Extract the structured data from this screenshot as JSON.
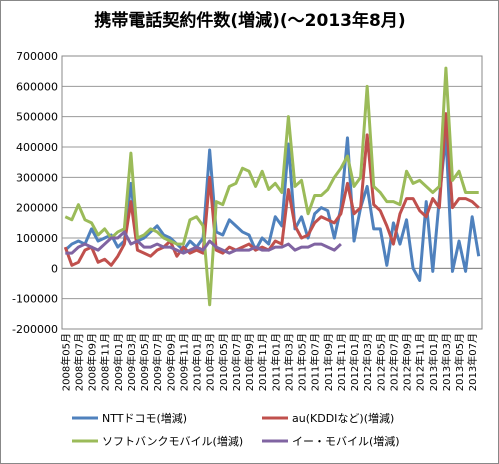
{
  "chart_data": {
    "type": "line",
    "title": "携帯電話契約件数(増減)(～2013年8月)",
    "categories": [
      "2008年05月",
      null,
      "2008年07月",
      null,
      "2008年09月",
      null,
      "2008年11月",
      null,
      "2009年01月",
      null,
      "2009年03月",
      null,
      "2009年05月",
      null,
      "2009年07月",
      null,
      "2009年09月",
      null,
      "2009年11月",
      null,
      "2010年01月",
      null,
      "2010年03月",
      null,
      "2010年05月",
      null,
      "2010年07月",
      null,
      "2010年09月",
      null,
      "2010年11月",
      null,
      "2011年01月",
      null,
      "2011年03月",
      null,
      "2011年05月",
      null,
      "2011年07月",
      null,
      "2011年09月",
      null,
      "2011年11月",
      null,
      "2012年01月",
      null,
      "2012年03月",
      null,
      "2012年05月",
      null,
      "2012年07月",
      null,
      "2012年09月",
      null,
      "2012年11月",
      null,
      "2013年01月",
      null,
      "2013年03月",
      null,
      "2013年05月",
      null,
      "2013年07月",
      null
    ],
    "series": [
      {
        "name": "NTTドコモ(増減)",
        "color": "#4f81bd",
        "values": [
          60000,
          80000,
          90000,
          80000,
          130000,
          90000,
          100000,
          110000,
          70000,
          90000,
          280000,
          90000,
          100000,
          120000,
          140000,
          110000,
          100000,
          80000,
          60000,
          90000,
          70000,
          100000,
          390000,
          120000,
          110000,
          160000,
          140000,
          120000,
          110000,
          60000,
          100000,
          80000,
          170000,
          140000,
          410000,
          130000,
          170000,
          100000,
          180000,
          200000,
          190000,
          100000,
          200000,
          430000,
          90000,
          200000,
          270000,
          130000,
          130000,
          10000,
          150000,
          80000,
          160000,
          0,
          -40000,
          220000,
          -10000,
          230000,
          440000,
          -10000,
          90000,
          -10000,
          170000,
          40000
        ]
      },
      {
        "name": "au(KDDIなど)(増減)",
        "color": "#c0504d",
        "values": [
          70000,
          10000,
          20000,
          60000,
          70000,
          20000,
          30000,
          10000,
          40000,
          80000,
          220000,
          60000,
          50000,
          40000,
          60000,
          70000,
          90000,
          40000,
          70000,
          50000,
          60000,
          50000,
          300000,
          60000,
          50000,
          70000,
          60000,
          70000,
          80000,
          60000,
          70000,
          60000,
          90000,
          80000,
          260000,
          140000,
          100000,
          110000,
          150000,
          170000,
          160000,
          150000,
          180000,
          280000,
          180000,
          200000,
          440000,
          210000,
          190000,
          140000,
          80000,
          180000,
          230000,
          230000,
          190000,
          170000,
          230000,
          200000,
          510000,
          200000,
          230000,
          230000,
          220000,
          200000
        ]
      },
      {
        "name": "ソフトバンクモバイル(増減)",
        "color": "#9bbb59",
        "values": [
          170000,
          160000,
          210000,
          160000,
          150000,
          110000,
          130000,
          100000,
          120000,
          130000,
          380000,
          100000,
          110000,
          130000,
          120000,
          100000,
          90000,
          80000,
          80000,
          160000,
          170000,
          140000,
          -120000,
          220000,
          210000,
          270000,
          280000,
          330000,
          320000,
          270000,
          320000,
          260000,
          280000,
          250000,
          500000,
          270000,
          290000,
          180000,
          240000,
          240000,
          260000,
          300000,
          330000,
          370000,
          270000,
          300000,
          600000,
          270000,
          250000,
          220000,
          220000,
          210000,
          320000,
          280000,
          290000,
          270000,
          250000,
          270000,
          660000,
          290000,
          320000,
          250000,
          250000,
          250000
        ]
      },
      {
        "name": "イー・モバイル(増減)",
        "color": "#8064a2",
        "values": [
          50000,
          50000,
          70000,
          80000,
          70000,
          60000,
          80000,
          100000,
          100000,
          120000,
          80000,
          90000,
          70000,
          70000,
          80000,
          70000,
          70000,
          60000,
          50000,
          60000,
          70000,
          60000,
          90000,
          70000,
          60000,
          50000,
          60000,
          60000,
          60000,
          70000,
          60000,
          60000,
          70000,
          70000,
          80000,
          60000,
          70000,
          70000,
          80000,
          80000,
          70000,
          60000,
          80000,
          null,
          null,
          null,
          null,
          null,
          null,
          null,
          null,
          null,
          null,
          null,
          null,
          null,
          null,
          null,
          null,
          null,
          null,
          null,
          null,
          null
        ]
      }
    ],
    "ylim": [
      -200000,
      700000
    ],
    "yticks": [
      -200000,
      -100000,
      0,
      100000,
      200000,
      300000,
      400000,
      500000,
      600000,
      700000
    ],
    "grid": true
  }
}
